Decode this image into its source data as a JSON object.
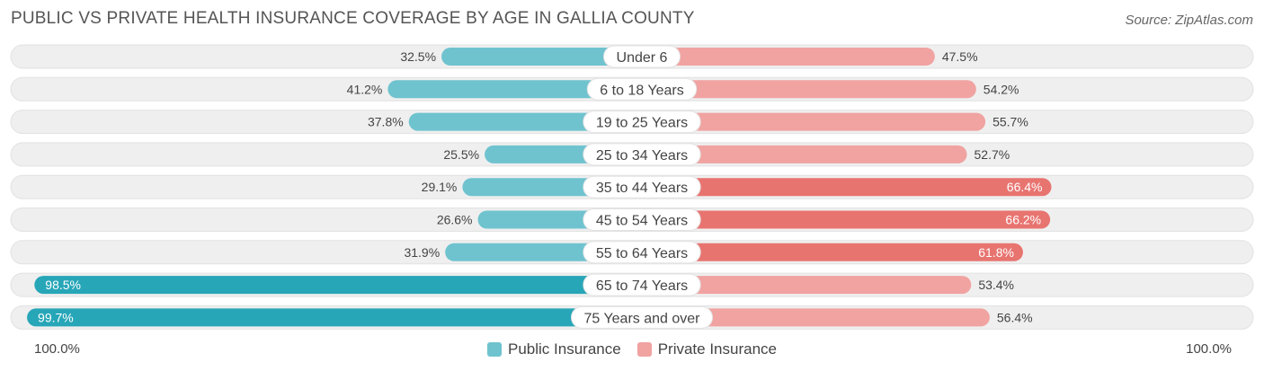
{
  "title": "PUBLIC VS PRIVATE HEALTH INSURANCE COVERAGE BY AGE IN GALLIA COUNTY",
  "source": "Source: ZipAtlas.com",
  "axis_left_label": "100.0%",
  "axis_right_label": "100.0%",
  "colors": {
    "public": "#6fc3cf",
    "public_strong": "#27a6b8",
    "private": "#f0a3a1",
    "private_strong": "#e87470",
    "track": "#efefef"
  },
  "legend": {
    "public": "Public Insurance",
    "private": "Private Insurance"
  },
  "chart_data": {
    "type": "bar",
    "orientation": "horizontal-diverging",
    "categories": [
      "Under 6",
      "6 to 18 Years",
      "19 to 25 Years",
      "25 to 34 Years",
      "35 to 44 Years",
      "45 to 54 Years",
      "55 to 64 Years",
      "65 to 74 Years",
      "75 Years and over"
    ],
    "series": [
      {
        "name": "Public Insurance",
        "values": [
          32.5,
          41.2,
          37.8,
          25.5,
          29.1,
          26.6,
          31.9,
          98.5,
          99.7
        ],
        "labels": [
          "32.5%",
          "41.2%",
          "37.8%",
          "25.5%",
          "29.1%",
          "26.6%",
          "31.9%",
          "98.5%",
          "99.7%"
        ]
      },
      {
        "name": "Private Insurance",
        "values": [
          47.5,
          54.2,
          55.7,
          52.7,
          66.4,
          66.2,
          61.8,
          53.4,
          56.4
        ],
        "labels": [
          "47.5%",
          "54.2%",
          "55.7%",
          "52.7%",
          "66.4%",
          "66.2%",
          "61.8%",
          "53.4%",
          "56.4%"
        ]
      }
    ],
    "xlim": [
      -100,
      100
    ],
    "legend_position": "bottom-center"
  }
}
